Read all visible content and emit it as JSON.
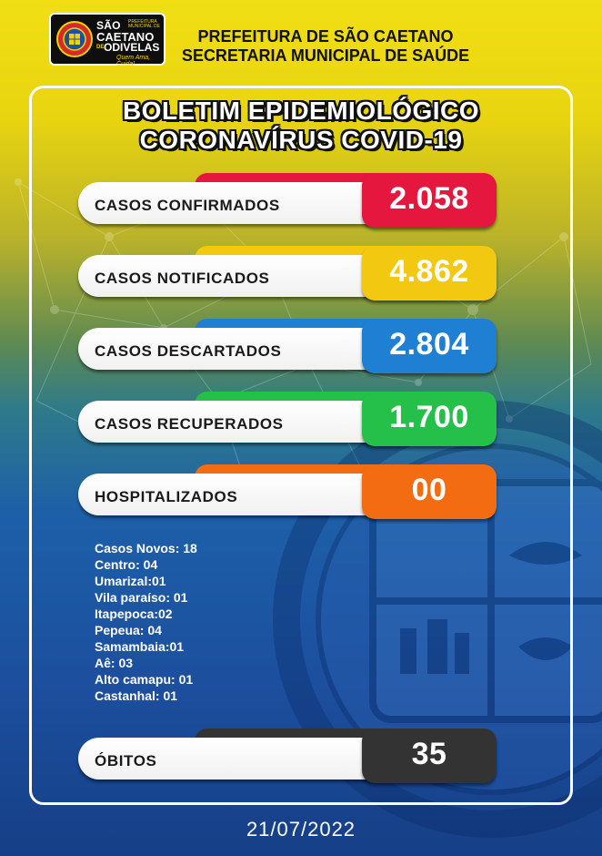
{
  "header": {
    "logo": {
      "line1": "SÃO",
      "prefecture_small": "PREFEITURA MUNICIPAL DE",
      "line2": "CAETANO",
      "de": "DE",
      "line3": "ODIVELAS",
      "slogan": "Quem Ama, Cuida!"
    },
    "title_line1": "PREFEITURA DE SÃO CAETANO",
    "title_line2": "SECRETARIA MUNICIPAL DE SAÚDE"
  },
  "bulletin": {
    "title_line1": "BOLETIM EPIDEMIOLÓGICO",
    "title_line2": "CORONAVÍRUS COVID-19"
  },
  "stats": [
    {
      "label": "CASOS CONFIRMADOS",
      "value": "2.058",
      "color": "#e5173f"
    },
    {
      "label": "CASOS NOTIFICADOS",
      "value": "4.862",
      "color": "#f2c811"
    },
    {
      "label": "CASOS DESCARTADOS",
      "value": "2.804",
      "color": "#1f7fd2"
    },
    {
      "label": "CASOS RECUPERADOS",
      "value": "1.700",
      "color": "#25c04a"
    },
    {
      "label": "HOSPITALIZADOS",
      "value": "00",
      "color": "#f46c12"
    }
  ],
  "new_cases": [
    "Casos Novos: 18",
    "Centro: 04",
    "Umarizal:01",
    "Vila paraíso: 01",
    "Itapepoca:02",
    "Pepeua: 04",
    "Samambaia:01",
    "Aê: 03",
    "Alto camapu: 01",
    "Castanhal: 01"
  ],
  "deaths": {
    "label": "ÓBITOS",
    "value": "35",
    "color": "#333333"
  },
  "date": "21/07/2022"
}
